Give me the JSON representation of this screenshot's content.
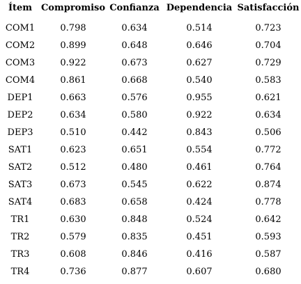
{
  "table": {
    "headers": [
      "Ítem",
      "Compromiso",
      "Confianza",
      "Dependencia",
      "Satisfacción"
    ],
    "rows": [
      [
        "COM1",
        "0.798",
        "0.634",
        "0.514",
        "0.723"
      ],
      [
        "COM2",
        "0.899",
        "0.648",
        "0.646",
        "0.704"
      ],
      [
        "COM3",
        "0.922",
        "0.673",
        "0.627",
        "0.729"
      ],
      [
        "COM4",
        "0.861",
        "0.668",
        "0.540",
        "0.583"
      ],
      [
        "DEP1",
        "0.663",
        "0.576",
        "0.955",
        "0.621"
      ],
      [
        "DEP2",
        "0.634",
        "0.580",
        "0.922",
        "0.634"
      ],
      [
        "DEP3",
        "0.510",
        "0.442",
        "0.843",
        "0.506"
      ],
      [
        "SAT1",
        "0.623",
        "0.651",
        "0.554",
        "0.772"
      ],
      [
        "SAT2",
        "0.512",
        "0.480",
        "0.461",
        "0.764"
      ],
      [
        "SAT3",
        "0.673",
        "0.545",
        "0.622",
        "0.874"
      ],
      [
        "SAT4",
        "0.683",
        "0.658",
        "0.424",
        "0.778"
      ],
      [
        "TR1",
        "0.630",
        "0.848",
        "0.524",
        "0.642"
      ],
      [
        "TR2",
        "0.579",
        "0.835",
        "0.451",
        "0.593"
      ],
      [
        "TR3",
        "0.608",
        "0.846",
        "0.416",
        "0.587"
      ],
      [
        "TR4",
        "0.736",
        "0.877",
        "0.607",
        "0.680"
      ]
    ]
  }
}
